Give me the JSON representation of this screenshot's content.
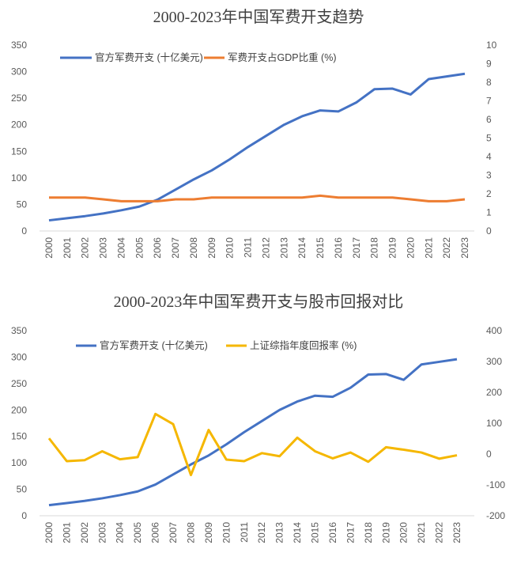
{
  "chart_data": [
    {
      "type": "line",
      "title": "2000-2023年中国军费开支趋势",
      "categories": [
        "2000",
        "2001",
        "2002",
        "2003",
        "2004",
        "2005",
        "2006",
        "2007",
        "2008",
        "2009",
        "2010",
        "2011",
        "2012",
        "2013",
        "2014",
        "2015",
        "2016",
        "2017",
        "2018",
        "2019",
        "2020",
        "2021",
        "2022",
        "2023"
      ],
      "y_left": {
        "range": [
          0,
          350
        ],
        "ticks": [
          "0",
          "50",
          "100",
          "150",
          "200",
          "250",
          "300",
          "350"
        ]
      },
      "y_right": {
        "range": [
          0,
          10
        ],
        "ticks": [
          "0",
          "1",
          "2",
          "3",
          "4",
          "5",
          "6",
          "7",
          "8",
          "9",
          "10"
        ]
      },
      "legend_position": "top",
      "grid": false,
      "series": [
        {
          "name": "官方军费开支 (十亿美元)",
          "axis": "left",
          "color": "#4472C4",
          "values": [
            20,
            24,
            28,
            33,
            39,
            46,
            59,
            78,
            97,
            114,
            135,
            158,
            179,
            200,
            216,
            227,
            225,
            242,
            267,
            268,
            257,
            286,
            291,
            296
          ]
        },
        {
          "name": "军费开支占GDP比重 (%)",
          "axis": "right",
          "color": "#ED7D31",
          "values": [
            1.8,
            1.8,
            1.8,
            1.7,
            1.6,
            1.6,
            1.6,
            1.7,
            1.7,
            1.8,
            1.8,
            1.8,
            1.8,
            1.8,
            1.8,
            1.9,
            1.8,
            1.8,
            1.8,
            1.8,
            1.7,
            1.6,
            1.6,
            1.7
          ]
        }
      ]
    },
    {
      "type": "line",
      "title": "2000-2023年中国军费开支与股市回报对比",
      "categories": [
        "2000",
        "2001",
        "2002",
        "2003",
        "2004",
        "2005",
        "2006",
        "2007",
        "2008",
        "2009",
        "2010",
        "2011",
        "2012",
        "2013",
        "2014",
        "2015",
        "2016",
        "2017",
        "2018",
        "2019",
        "2020",
        "2021",
        "2022",
        "2023"
      ],
      "y_left": {
        "range": [
          0,
          350
        ],
        "ticks": [
          "0",
          "50",
          "100",
          "150",
          "200",
          "250",
          "300",
          "350"
        ]
      },
      "y_right": {
        "range": [
          -200,
          400
        ],
        "ticks": [
          "-200",
          "-100",
          "0",
          "100",
          "200",
          "300",
          "400"
        ]
      },
      "legend_position": "top",
      "grid": false,
      "series": [
        {
          "name": "官方军费开支 (十亿美元)",
          "axis": "left",
          "color": "#4472C4",
          "values": [
            20,
            24,
            28,
            33,
            39,
            46,
            59,
            78,
            97,
            114,
            135,
            158,
            179,
            200,
            216,
            227,
            225,
            242,
            267,
            268,
            257,
            286,
            291,
            296
          ]
        },
        {
          "name": "上证综指年度回报率 (%)",
          "axis": "right",
          "color": "#F5B700",
          "values": [
            51,
            -23,
            -20,
            9,
            -17,
            -10,
            130,
            97,
            -68,
            78,
            -18,
            -23,
            3,
            -7,
            53,
            9,
            -14,
            5,
            -25,
            22,
            14,
            5,
            -15,
            -4
          ]
        }
      ]
    }
  ]
}
